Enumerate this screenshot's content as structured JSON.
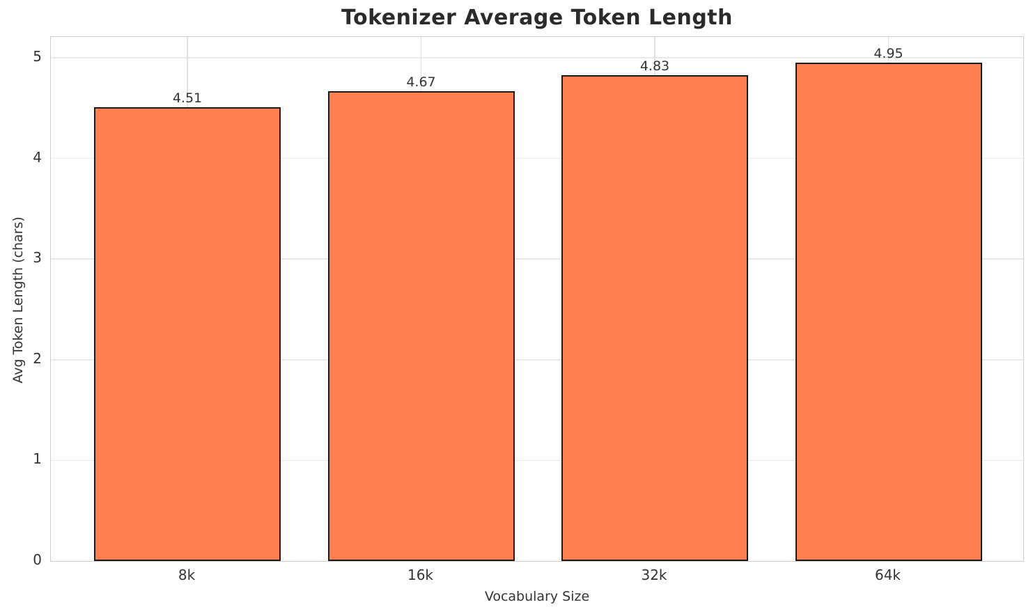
{
  "chart_data": {
    "type": "bar",
    "title": "Tokenizer Average Token Length",
    "xlabel": "Vocabulary Size",
    "ylabel": "Avg Token Length (chars)",
    "categories": [
      "8k",
      "16k",
      "32k",
      "64k"
    ],
    "values": [
      4.51,
      4.67,
      4.83,
      4.95
    ],
    "value_labels": [
      "4.51",
      "4.67",
      "4.83",
      "4.95"
    ],
    "yticks": [
      0,
      1,
      2,
      3,
      4,
      5
    ],
    "ytick_labels": [
      "0",
      "1",
      "2",
      "3",
      "4",
      "5"
    ],
    "ylim": [
      0,
      5.2
    ],
    "grid": "both",
    "legend_position": "none",
    "colors": {
      "bar_fill": "#ff7f50",
      "bar_edge": "#1a1a1a",
      "gridline": "#e9e9e9",
      "plot_border": "#cccccc",
      "text": "#333333",
      "title_text": "#2b2b2b",
      "background": "#ffffff"
    }
  }
}
